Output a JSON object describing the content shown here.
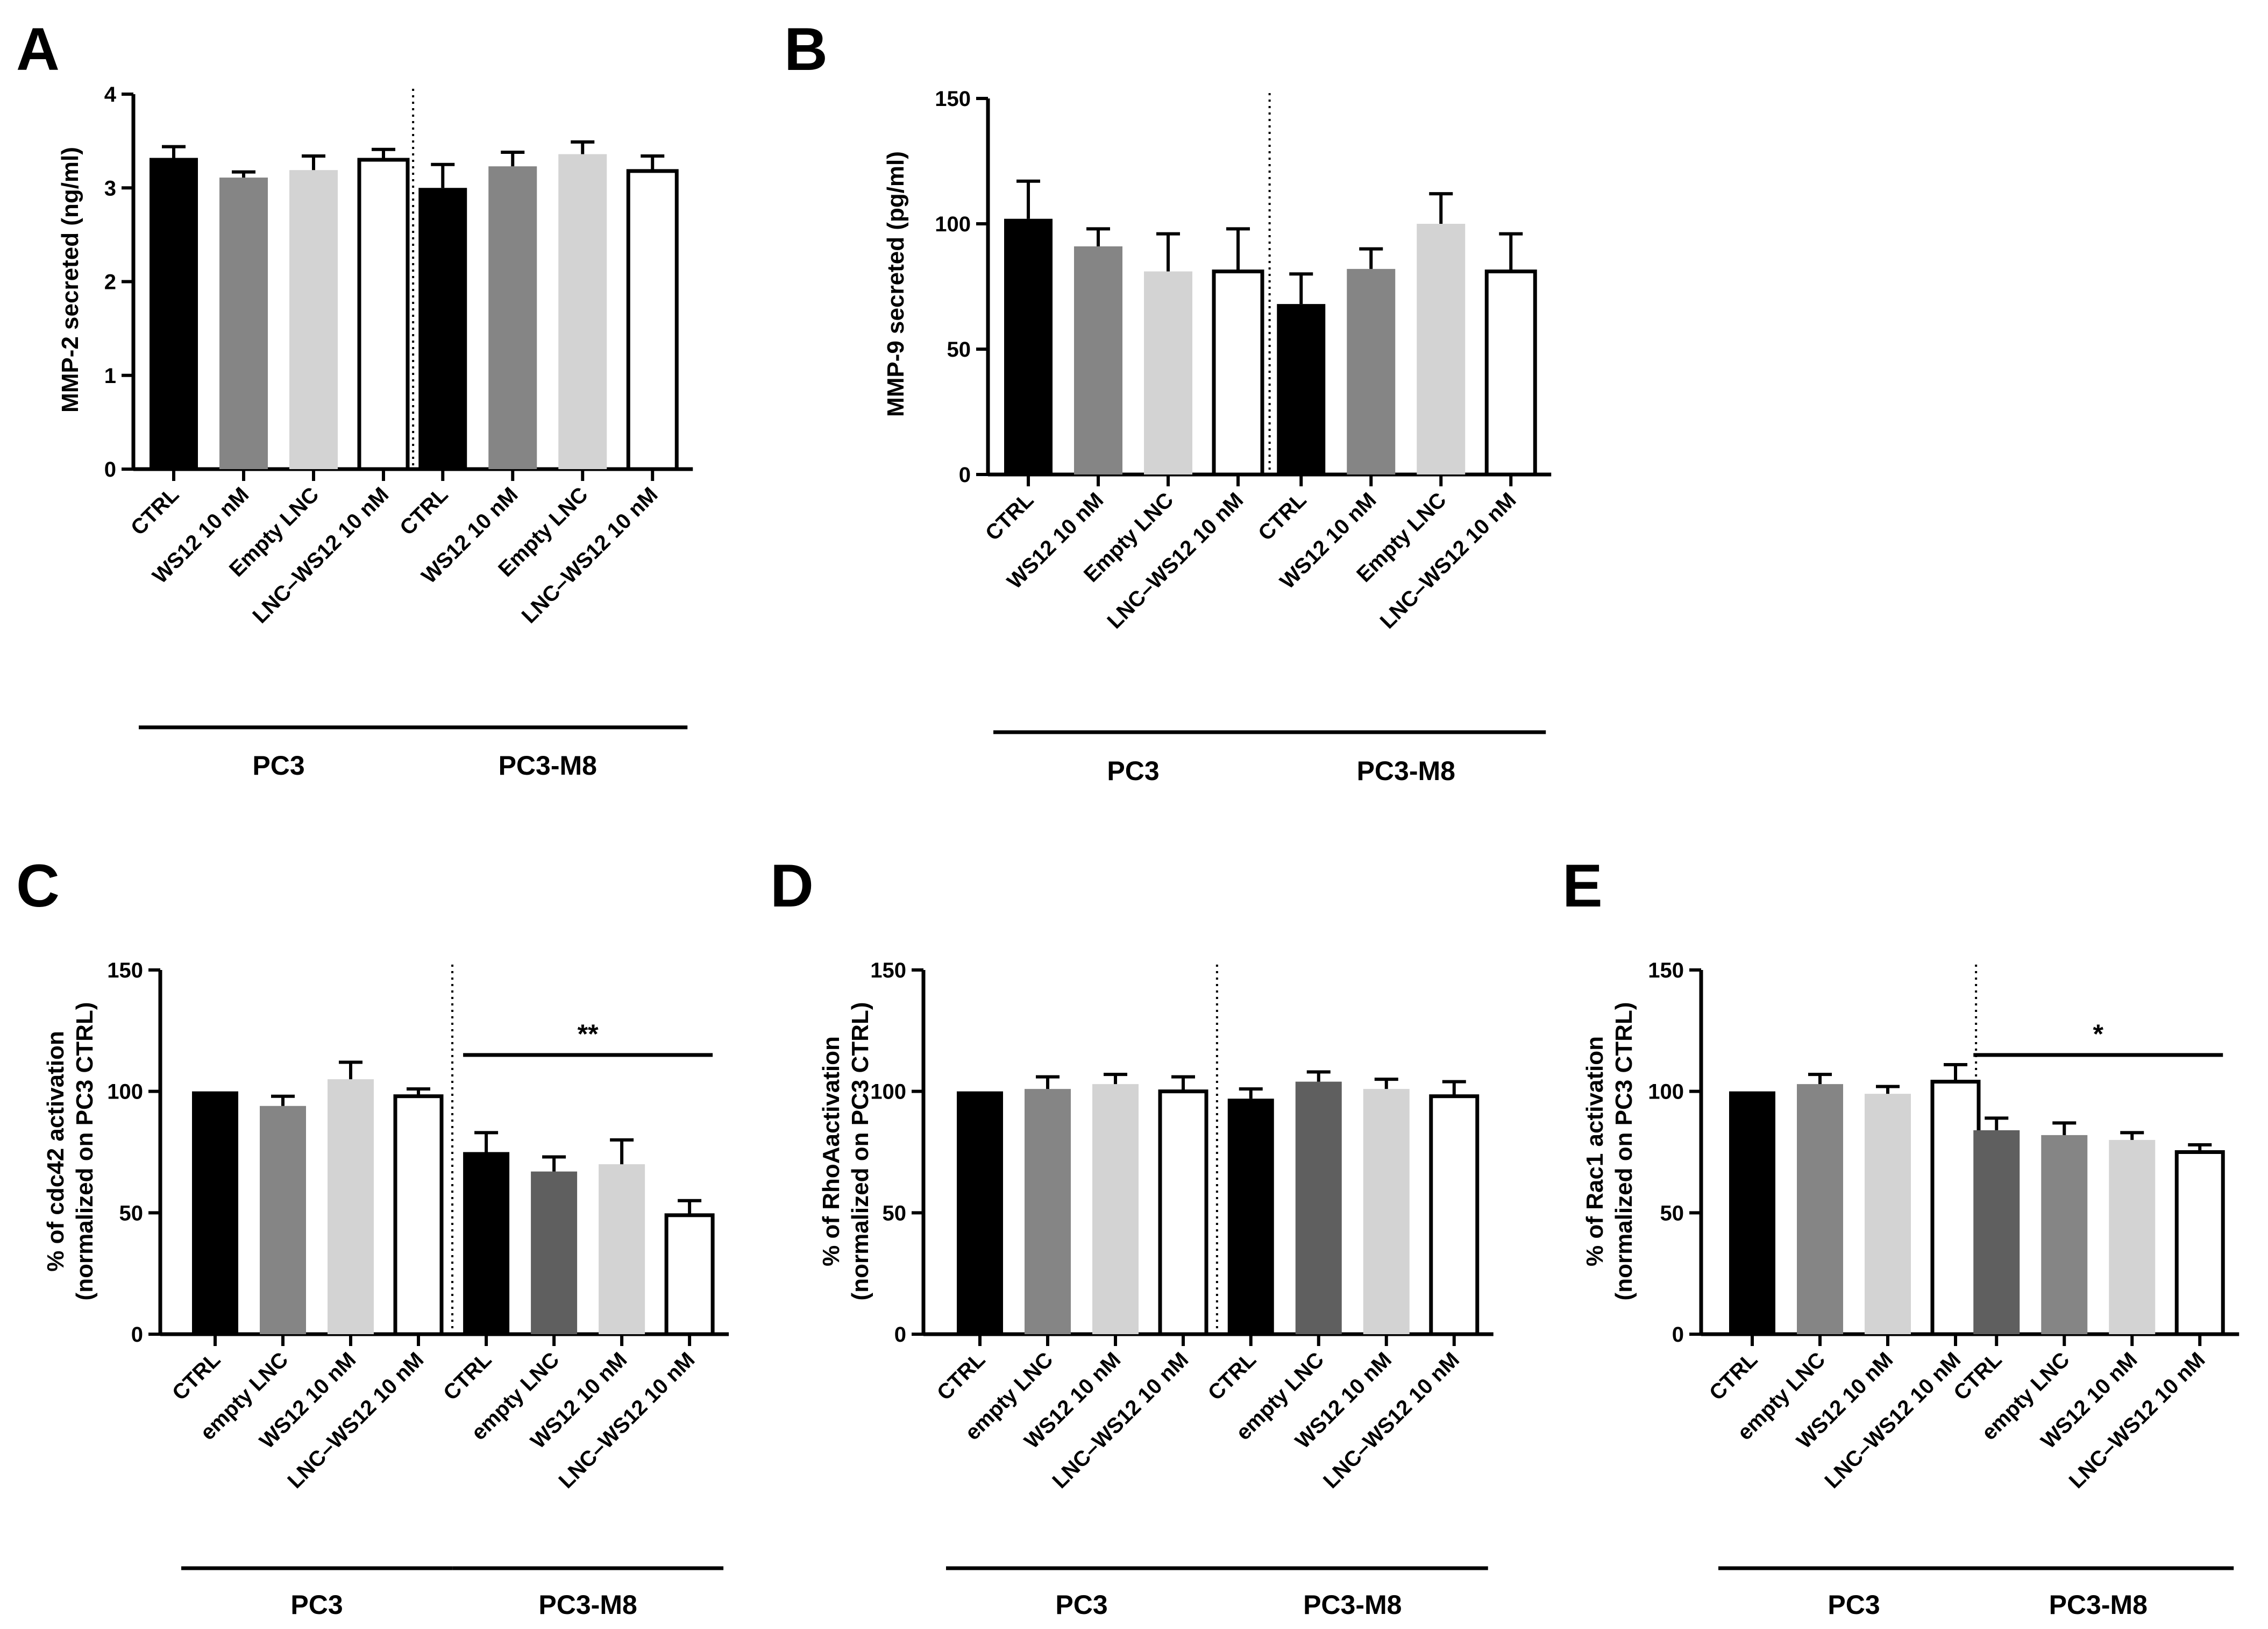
{
  "colors": {
    "black": "#000000",
    "dark_gray": "#5f5f5f",
    "gray": "#858585",
    "light_gray": "#d3d3d3",
    "white": "#ffffff"
  },
  "chart_data": [
    {
      "panel": "A",
      "type": "bar",
      "ylabel": "MMP-2 secreted (ng/ml)",
      "ylim": [
        0,
        4
      ],
      "yticks": [
        0,
        1,
        2,
        3,
        4
      ],
      "categories": [
        "CTRL",
        "WS12 10 nM",
        "Empty LNC",
        "LNC–WS12 10 nM",
        "CTRL",
        "WS12 10 nM",
        "Empty LNC",
        "LNC–WS12 10 nM"
      ],
      "values": [
        3.32,
        3.11,
        3.19,
        3.3,
        3.0,
        3.23,
        3.36,
        3.18
      ],
      "errors": [
        0.12,
        0.06,
        0.15,
        0.11,
        0.25,
        0.15,
        0.13,
        0.16
      ],
      "fills": [
        "black",
        "gray",
        "light_gray",
        "white",
        "black",
        "gray",
        "light_gray",
        "white"
      ],
      "groups": [
        {
          "label": "PC3",
          "start": 0,
          "end": 3
        },
        {
          "label": "PC3-M8",
          "start": 4,
          "end": 7
        }
      ],
      "significance": null
    },
    {
      "panel": "B",
      "type": "bar",
      "ylabel": "MMP-9 secreted (pg/ml)",
      "ylim": [
        0,
        150
      ],
      "yticks": [
        0,
        50,
        100,
        150
      ],
      "categories": [
        "CTRL",
        "WS12 10 nM",
        "Empty LNC",
        "LNC–WS12 10 nM",
        "CTRL",
        "WS12 10 nM",
        "Empty LNC",
        "LNC–WS12 10 nM"
      ],
      "values": [
        102,
        91,
        81,
        81,
        68,
        82,
        100,
        81
      ],
      "errors": [
        15,
        7,
        15,
        17,
        12,
        8,
        12,
        15
      ],
      "fills": [
        "black",
        "gray",
        "light_gray",
        "white",
        "black",
        "gray",
        "light_gray",
        "white"
      ],
      "groups": [
        {
          "label": "PC3",
          "start": 0,
          "end": 3
        },
        {
          "label": "PC3-M8",
          "start": 4,
          "end": 7
        }
      ],
      "significance": null
    },
    {
      "panel": "C",
      "type": "bar",
      "ylabel": [
        "% of cdc42 activation",
        "(normalized on PC3 CTRL)"
      ],
      "ylim": [
        0,
        150
      ],
      "yticks": [
        0,
        50,
        100,
        150
      ],
      "categories": [
        "CTRL",
        "empty LNC",
        "WS12 10 nM",
        "LNC–WS12 10 nM",
        "CTRL",
        "empty LNC",
        "WS12 10 nM",
        "LNC–WS12 10 nM"
      ],
      "values": [
        100,
        94,
        105,
        98,
        75,
        67,
        70,
        49
      ],
      "errors": [
        0,
        4,
        7,
        3,
        8,
        6,
        10,
        6
      ],
      "fills": [
        "black",
        "gray",
        "light_gray",
        "white",
        "black",
        "dark_gray",
        "light_gray",
        "white"
      ],
      "groups": [
        {
          "label": "PC3",
          "start": 0,
          "end": 3
        },
        {
          "label": "PC3-M8",
          "start": 4,
          "end": 7
        }
      ],
      "significance": {
        "label": "**",
        "from": 4,
        "to": 7,
        "y": 115
      }
    },
    {
      "panel": "D",
      "type": "bar",
      "ylabel": [
        "% of RhoAactivation",
        "(normalized on PC3 CTRL)"
      ],
      "ylim": [
        0,
        150
      ],
      "yticks": [
        0,
        50,
        100,
        150
      ],
      "categories": [
        "CTRL",
        "empty LNC",
        "WS12 10 nM",
        "LNC–WS12 10 nM",
        "CTRL",
        "empty LNC",
        "WS12 10 nM",
        "LNC–WS12 10 nM"
      ],
      "values": [
        100,
        101,
        103,
        100,
        97,
        104,
        101,
        98
      ],
      "errors": [
        0,
        5,
        4,
        6,
        4,
        4,
        4,
        6
      ],
      "fills": [
        "black",
        "gray",
        "light_gray",
        "white",
        "black",
        "dark_gray",
        "light_gray",
        "white"
      ],
      "groups": [
        {
          "label": "PC3",
          "start": 0,
          "end": 3
        },
        {
          "label": "PC3-M8",
          "start": 4,
          "end": 7
        }
      ],
      "significance": null
    },
    {
      "panel": "E",
      "type": "bar",
      "ylabel": [
        "% of Rac1 activation",
        "(normalized on PC3 CTRL)"
      ],
      "ylim": [
        0,
        150
      ],
      "yticks": [
        0,
        50,
        100,
        150
      ],
      "categories": [
        "CTRL",
        "empty LNC",
        "WS12 10 nM",
        "LNC–WS12 10 nM",
        "CTRL",
        "empty LNC",
        "WS12 10 nM",
        "LNC–WS12 10 nM"
      ],
      "values": [
        100,
        103,
        99,
        104,
        84,
        82,
        80,
        75
      ],
      "errors": [
        0,
        4,
        3,
        7,
        5,
        5,
        3,
        3
      ],
      "fills": [
        "black",
        "gray",
        "light_gray",
        "white",
        "dark_gray",
        "gray",
        "light_gray",
        "white"
      ],
      "groups": [
        {
          "label": "PC3",
          "start": 0,
          "end": 3
        },
        {
          "label": "PC3-M8",
          "start": 4,
          "end": 7
        }
      ],
      "significance": {
        "label": "*",
        "from": 4,
        "to": 7,
        "y": 115
      }
    }
  ]
}
